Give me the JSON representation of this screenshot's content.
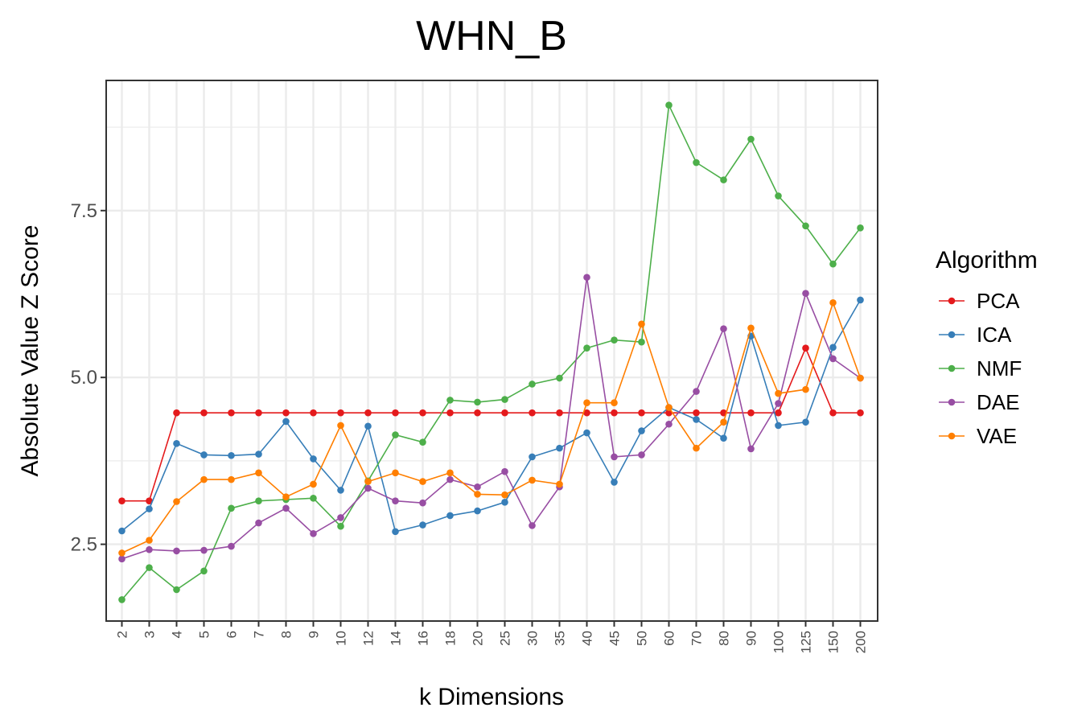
{
  "chart_data": {
    "type": "line",
    "title": "WHN_B",
    "xlabel": "k Dimensions",
    "ylabel": "Absolute Value Z Score",
    "categories": [
      "2",
      "3",
      "4",
      "5",
      "6",
      "7",
      "8",
      "9",
      "10",
      "12",
      "14",
      "16",
      "18",
      "20",
      "25",
      "30",
      "35",
      "40",
      "45",
      "50",
      "60",
      "70",
      "80",
      "90",
      "100",
      "125",
      "150",
      "200"
    ],
    "y_ticks": [
      "2.5",
      "5.0",
      "7.5"
    ],
    "ylim": [
      1.35,
      9.45
    ],
    "grid": true,
    "legend": {
      "title": "Algorithm",
      "position": "right"
    },
    "series": [
      {
        "name": "PCA",
        "color": "#e41a1c",
        "values": [
          3.15,
          3.15,
          4.47,
          4.47,
          4.47,
          4.47,
          4.47,
          4.47,
          4.47,
          4.47,
          4.47,
          4.47,
          4.47,
          4.47,
          4.47,
          4.47,
          4.47,
          4.47,
          4.47,
          4.47,
          4.47,
          4.47,
          4.47,
          4.47,
          4.47,
          5.44,
          4.47,
          4.47
        ]
      },
      {
        "name": "ICA",
        "color": "#377eb8",
        "values": [
          2.7,
          3.03,
          4.01,
          3.84,
          3.83,
          3.85,
          4.34,
          3.78,
          3.31,
          4.27,
          2.69,
          2.79,
          2.93,
          3.0,
          3.13,
          3.81,
          3.94,
          4.17,
          3.43,
          4.2,
          4.55,
          4.37,
          4.09,
          5.62,
          4.28,
          4.33,
          5.45,
          6.16
        ]
      },
      {
        "name": "NMF",
        "color": "#4daf4a",
        "values": [
          1.67,
          2.15,
          1.82,
          2.1,
          3.04,
          3.15,
          3.17,
          3.19,
          2.77,
          3.45,
          4.14,
          4.03,
          4.66,
          4.63,
          4.67,
          4.9,
          4.99,
          5.44,
          5.56,
          5.53,
          9.08,
          8.22,
          7.96,
          8.57,
          7.72,
          7.27,
          6.7,
          7.24
        ]
      },
      {
        "name": "DAE",
        "color": "#984ea3",
        "values": [
          2.28,
          2.42,
          2.4,
          2.41,
          2.47,
          2.82,
          3.04,
          2.66,
          2.9,
          3.34,
          3.15,
          3.12,
          3.47,
          3.36,
          3.59,
          2.78,
          3.36,
          6.5,
          3.81,
          3.84,
          4.3,
          4.79,
          5.73,
          3.93,
          4.61,
          6.26,
          5.28,
          4.99
        ]
      },
      {
        "name": "VAE",
        "color": "#ff7f00",
        "values": [
          2.37,
          2.56,
          3.14,
          3.47,
          3.47,
          3.57,
          3.21,
          3.4,
          4.28,
          3.44,
          3.57,
          3.44,
          3.57,
          3.25,
          3.24,
          3.46,
          3.4,
          4.62,
          4.62,
          5.8,
          4.55,
          3.94,
          4.33,
          5.74,
          4.76,
          4.82,
          6.12,
          4.99
        ]
      }
    ]
  }
}
